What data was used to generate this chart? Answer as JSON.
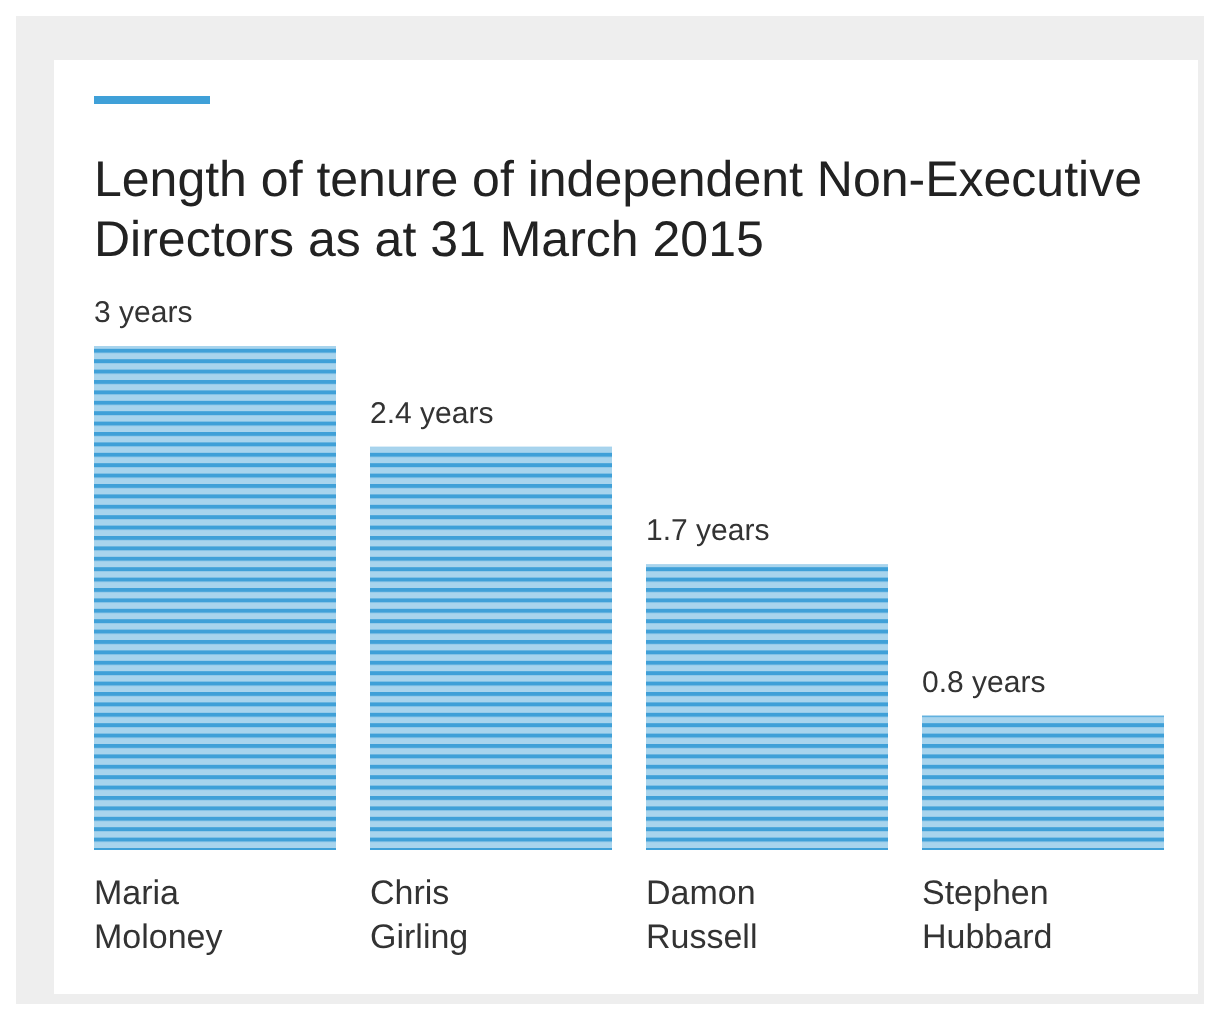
{
  "chart_data": {
    "type": "bar",
    "title": "Length of tenure of independent Non-Executive Directors as at 31 March 2015",
    "categories": [
      "Maria Moloney",
      "Chris Girling",
      "Damon Russell",
      "Stephen Hubbard"
    ],
    "values": [
      3,
      2.4,
      1.7,
      0.8
    ],
    "value_labels": [
      "3 years",
      "2.4 years",
      "1.7 years",
      "0.8 years"
    ],
    "color": "#3fa0d8"
  }
}
